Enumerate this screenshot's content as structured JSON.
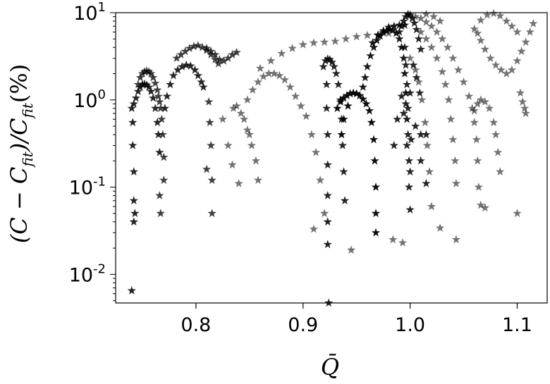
{
  "chart_data": {
    "type": "scatter",
    "title": "",
    "xlabel": "Q̄",
    "ylabel": "(C − C_fit)/C_fit(%)",
    "ylabel_parts": {
      "open": "(C − C",
      "sub1": "fit",
      "mid": ")/C",
      "sub2": "fit",
      "tail": "(%)"
    },
    "xlim": [
      0.725,
      1.128
    ],
    "ylim": [
      0.0047,
      10
    ],
    "yscale": "log",
    "grid": false,
    "marker": "star",
    "color": "#000000",
    "x_ticks": [
      {
        "value": 0.8,
        "label": "0.8"
      },
      {
        "value": 0.9,
        "label": "0.9"
      },
      {
        "value": 1.0,
        "label": "1.0"
      },
      {
        "value": 1.1,
        "label": "1.1"
      }
    ],
    "y_ticks": [
      {
        "value": 0.01,
        "base": "10",
        "exp": "-2"
      },
      {
        "value": 0.1,
        "base": "10",
        "exp": "-1"
      },
      {
        "value": 1,
        "base": "10",
        "exp": "0"
      },
      {
        "value": 10,
        "base": "10",
        "exp": "1"
      }
    ],
    "series": [
      {
        "opacity": 0.85,
        "points": [
          [
            0.74,
            0.8
          ],
          [
            0.742,
            0.9
          ],
          [
            0.744,
            1.05
          ],
          [
            0.746,
            1.25
          ],
          [
            0.748,
            1.4
          ],
          [
            0.75,
            1.5
          ],
          [
            0.752,
            1.52
          ],
          [
            0.754,
            1.48
          ],
          [
            0.756,
            1.4
          ],
          [
            0.758,
            1.25
          ],
          [
            0.76,
            1.05
          ],
          [
            0.762,
            0.8
          ],
          [
            0.764,
            0.55
          ],
          [
            0.765,
            0.4
          ],
          [
            0.766,
            0.25
          ],
          [
            0.741,
            0.55
          ],
          [
            0.741,
            0.3
          ],
          [
            0.742,
            0.15
          ],
          [
            0.742,
            0.07
          ],
          [
            0.743,
            0.05
          ],
          [
            0.742,
            0.04
          ],
          [
            0.74,
            0.0065
          ]
        ]
      },
      {
        "opacity": 0.75,
        "points": [
          [
            0.746,
            1.5
          ],
          [
            0.748,
            1.8
          ],
          [
            0.75,
            2.0
          ],
          [
            0.752,
            2.1
          ],
          [
            0.754,
            2.15
          ],
          [
            0.756,
            2.1
          ],
          [
            0.758,
            2.0
          ],
          [
            0.76,
            1.8
          ],
          [
            0.762,
            1.55
          ],
          [
            0.764,
            1.3
          ],
          [
            0.765,
            1.1
          ],
          [
            0.766,
            0.95
          ],
          [
            0.767,
            0.8
          ],
          [
            0.768,
            0.6
          ],
          [
            0.769,
            0.4
          ],
          [
            0.77,
            0.22
          ],
          [
            0.77,
            0.12
          ],
          [
            0.766,
            0.08
          ],
          [
            0.767,
            0.05
          ]
        ]
      },
      {
        "opacity": 0.85,
        "points": [
          [
            0.771,
            0.8
          ],
          [
            0.773,
            1.1
          ],
          [
            0.776,
            1.5
          ],
          [
            0.779,
            1.9
          ],
          [
            0.783,
            2.2
          ],
          [
            0.787,
            2.4
          ],
          [
            0.791,
            2.5
          ],
          [
            0.795,
            2.45
          ],
          [
            0.799,
            2.2
          ],
          [
            0.802,
            1.9
          ],
          [
            0.805,
            1.6
          ],
          [
            0.807,
            1.4
          ]
        ]
      },
      {
        "opacity": 0.75,
        "points": [
          [
            0.782,
            3.0
          ],
          [
            0.786,
            3.3
          ],
          [
            0.79,
            3.6
          ],
          [
            0.794,
            3.9
          ],
          [
            0.798,
            4.1
          ],
          [
            0.802,
            4.2
          ],
          [
            0.806,
            4.0
          ],
          [
            0.81,
            3.7
          ],
          [
            0.814,
            3.3
          ],
          [
            0.818,
            2.9
          ],
          [
            0.821,
            2.6
          ],
          [
            0.81,
            3.9
          ],
          [
            0.814,
            3.6
          ],
          [
            0.818,
            3.3
          ],
          [
            0.822,
            2.9
          ],
          [
            0.826,
            2.8
          ],
          [
            0.83,
            3.0
          ],
          [
            0.834,
            3.3
          ],
          [
            0.838,
            3.5
          ],
          [
            0.812,
            0.95
          ],
          [
            0.813,
            0.55
          ],
          [
            0.814,
            0.3
          ],
          [
            0.815,
            0.12
          ],
          [
            0.815,
            0.05
          ],
          [
            0.81,
            0.16
          ]
        ]
      },
      {
        "opacity": 0.55,
        "points": [
          [
            0.835,
            0.8
          ],
          [
            0.838,
            0.85
          ],
          [
            0.842,
            0.7
          ],
          [
            0.848,
            0.45
          ],
          [
            0.852,
            0.3
          ],
          [
            0.856,
            0.2
          ],
          [
            0.858,
            0.12
          ],
          [
            0.845,
            0.6
          ],
          [
            0.85,
            0.4
          ],
          [
            0.848,
            1.0
          ],
          [
            0.853,
            1.3
          ],
          [
            0.858,
            1.6
          ],
          [
            0.863,
            1.85
          ],
          [
            0.868,
            2.0
          ],
          [
            0.873,
            2.0
          ],
          [
            0.878,
            1.9
          ],
          [
            0.883,
            1.7
          ],
          [
            0.888,
            1.4
          ],
          [
            0.893,
            1.1
          ],
          [
            0.898,
            0.85
          ],
          [
            0.903,
            0.65
          ],
          [
            0.908,
            0.4
          ],
          [
            0.912,
            0.25
          ],
          [
            0.916,
            0.12
          ],
          [
            0.92,
            0.05
          ],
          [
            0.91,
            0.033
          ],
          [
            0.86,
            2.3
          ],
          [
            0.87,
            2.8
          ],
          [
            0.88,
            3.4
          ],
          [
            0.89,
            3.9
          ],
          [
            0.9,
            4.3
          ],
          [
            0.91,
            4.5
          ],
          [
            0.92,
            4.6
          ],
          [
            0.93,
            4.7
          ],
          [
            0.94,
            5.0
          ],
          [
            0.95,
            5.3
          ],
          [
            0.96,
            5.5
          ],
          [
            0.97,
            5.6
          ],
          [
            0.98,
            5.8
          ],
          [
            0.83,
            0.3
          ],
          [
            0.834,
            0.18
          ],
          [
            0.84,
            0.11
          ],
          [
            0.825,
            0.6
          ]
        ]
      },
      {
        "opacity": 0.85,
        "points": [
          [
            0.919,
            2.4
          ],
          [
            0.921,
            2.8
          ],
          [
            0.923,
            2.95
          ],
          [
            0.925,
            2.9
          ],
          [
            0.927,
            2.7
          ],
          [
            0.929,
            2.4
          ],
          [
            0.931,
            2.0
          ],
          [
            0.933,
            1.5
          ],
          [
            0.935,
            1.0
          ],
          [
            0.936,
            0.6
          ],
          [
            0.937,
            0.3
          ],
          [
            0.938,
            0.15
          ],
          [
            0.939,
            0.07
          ],
          [
            0.922,
            1.5
          ],
          [
            0.922,
            0.8
          ],
          [
            0.923,
            0.4
          ],
          [
            0.923,
            0.18
          ],
          [
            0.923,
            0.08
          ],
          [
            0.923,
            0.04
          ],
          [
            0.923,
            0.022
          ],
          [
            0.924,
            0.0047
          ]
        ]
      },
      {
        "opacity": 0.95,
        "points": [
          [
            0.932,
            0.8
          ],
          [
            0.935,
            0.95
          ],
          [
            0.938,
            1.05
          ],
          [
            0.941,
            1.12
          ],
          [
            0.944,
            1.18
          ],
          [
            0.947,
            1.2
          ],
          [
            0.95,
            1.18
          ],
          [
            0.953,
            1.12
          ],
          [
            0.956,
            1.02
          ],
          [
            0.959,
            0.9
          ],
          [
            0.962,
            0.75
          ],
          [
            0.964,
            0.55
          ],
          [
            0.966,
            0.35
          ],
          [
            0.967,
            0.2
          ],
          [
            0.968,
            0.1
          ],
          [
            0.968,
            0.05
          ],
          [
            0.968,
            0.03
          ],
          [
            0.938,
            0.6
          ],
          [
            0.942,
            0.85
          ],
          [
            0.936,
            0.4
          ]
        ]
      },
      {
        "opacity": 0.9,
        "points": [
          [
            0.956,
            1.4
          ],
          [
            0.958,
            1.8
          ],
          [
            0.96,
            2.4
          ],
          [
            0.963,
            3.2
          ],
          [
            0.966,
            4.0
          ],
          [
            0.969,
            4.8
          ],
          [
            0.972,
            5.4
          ],
          [
            0.975,
            5.9
          ],
          [
            0.978,
            6.2
          ],
          [
            0.981,
            6.4
          ],
          [
            0.984,
            6.3
          ],
          [
            0.987,
            5.8
          ],
          [
            0.99,
            5.0
          ],
          [
            0.992,
            4.0
          ],
          [
            0.994,
            3.0
          ],
          [
            0.995,
            2.0
          ],
          [
            0.996,
            1.2
          ],
          [
            0.997,
            0.6
          ],
          [
            0.965,
            4.5
          ],
          [
            0.97,
            5.5
          ],
          [
            0.975,
            6.2
          ],
          [
            0.98,
            6.8
          ],
          [
            0.985,
            7.0
          ],
          [
            0.99,
            7.2
          ],
          [
            0.995,
            7.2
          ]
        ]
      },
      {
        "opacity": 0.85,
        "points": [
          [
            0.99,
            6.0
          ],
          [
            0.992,
            7.0
          ],
          [
            0.994,
            8.0
          ],
          [
            0.996,
            9.0
          ],
          [
            0.998,
            9.6
          ],
          [
            1.0,
            9.4
          ],
          [
            1.002,
            8.6
          ],
          [
            1.004,
            7.6
          ],
          [
            1.006,
            6.4
          ],
          [
            1.008,
            5.0
          ],
          [
            1.01,
            3.8
          ],
          [
            0.995,
            4.0
          ],
          [
            0.996,
            2.5
          ],
          [
            0.997,
            1.5
          ],
          [
            0.998,
            0.8
          ],
          [
            0.998,
            0.4
          ],
          [
            0.999,
            0.2
          ],
          [
            0.999,
            0.1
          ],
          [
            1.0,
            0.055
          ],
          [
            0.997,
            0.3
          ],
          [
            1.001,
            0.35
          ],
          [
            0.996,
            0.9
          ],
          [
            1.0,
            1.2
          ],
          [
            1.003,
            2.5
          ],
          [
            1.006,
            1.8
          ],
          [
            1.009,
            1.2
          ],
          [
            0.994,
            0.7
          ],
          [
            0.992,
            1.1
          ],
          [
            0.988,
            0.6
          ],
          [
            0.985,
            0.3
          ],
          [
            1.005,
            0.5
          ],
          [
            1.01,
            0.4
          ],
          [
            1.015,
            0.4
          ],
          [
            1.01,
            0.2
          ],
          [
            1.015,
            0.11
          ],
          [
            1.0,
            0.15
          ]
        ]
      },
      {
        "opacity": 0.55,
        "points": [
          [
            1.005,
            9.0
          ],
          [
            1.01,
            8.6
          ],
          [
            1.015,
            7.8
          ],
          [
            1.02,
            7.0
          ],
          [
            1.025,
            6.0
          ],
          [
            1.03,
            5.0
          ],
          [
            1.035,
            4.0
          ],
          [
            1.04,
            3.0
          ],
          [
            1.045,
            2.2
          ],
          [
            1.05,
            1.6
          ],
          [
            1.055,
            1.1
          ],
          [
            1.058,
            0.8
          ],
          [
            1.06,
            0.55
          ],
          [
            1.062,
            0.35
          ],
          [
            1.063,
            0.2
          ],
          [
            1.064,
            0.1
          ],
          [
            1.066,
            0.062
          ],
          [
            1.07,
            0.058
          ],
          [
            1.01,
            6.0
          ],
          [
            1.015,
            5.0
          ],
          [
            1.02,
            4.0
          ],
          [
            1.025,
            3.0
          ],
          [
            1.03,
            2.1
          ],
          [
            1.033,
            1.5
          ],
          [
            1.036,
            1.0
          ],
          [
            1.038,
            0.6
          ],
          [
            1.04,
            0.35
          ],
          [
            1.042,
            0.2
          ],
          [
            1.043,
            0.11
          ],
          [
            1.0,
            3.0
          ],
          [
            1.005,
            2.2
          ],
          [
            1.008,
            1.6
          ],
          [
            1.011,
            1.0
          ],
          [
            1.014,
            0.55
          ],
          [
            1.016,
            0.3
          ],
          [
            1.018,
            0.15
          ],
          [
            1.02,
            0.06
          ],
          [
            1.015,
            9.6
          ],
          [
            1.022,
            9.0
          ],
          [
            1.028,
            8.0
          ],
          [
            1.06,
            0.75
          ],
          [
            1.063,
            0.9
          ],
          [
            1.066,
            1.0
          ],
          [
            1.07,
            0.95
          ],
          [
            1.074,
            0.8
          ],
          [
            1.078,
            0.55
          ],
          [
            1.08,
            0.4
          ],
          [
            1.082,
            0.25
          ],
          [
            1.084,
            0.15
          ],
          [
            1.06,
            6.5
          ],
          [
            1.063,
            5.8
          ],
          [
            1.066,
            4.8
          ],
          [
            1.07,
            3.8
          ],
          [
            1.075,
            3.0
          ],
          [
            1.08,
            2.5
          ],
          [
            1.085,
            2.2
          ],
          [
            1.09,
            2.0
          ],
          [
            1.095,
            2.2
          ],
          [
            1.1,
            2.8
          ],
          [
            1.104,
            3.6
          ],
          [
            1.108,
            4.6
          ],
          [
            1.112,
            6.0
          ],
          [
            1.115,
            7.5
          ],
          [
            1.066,
            8.2
          ],
          [
            1.072,
            9.4
          ],
          [
            1.078,
            9.8
          ],
          [
            1.084,
            9.2
          ],
          [
            1.09,
            8.0
          ],
          [
            1.095,
            7.0
          ],
          [
            1.1,
            6.0
          ],
          [
            1.103,
            1.2
          ],
          [
            1.105,
            0.95
          ],
          [
            1.107,
            0.8
          ],
          [
            1.108,
            0.7
          ],
          [
            1.1,
            0.05
          ],
          [
            1.043,
            0.025
          ],
          [
            1.028,
            0.034
          ],
          [
            0.993,
            0.023
          ],
          [
            0.984,
            0.025
          ],
          [
            0.945,
            0.019
          ]
        ]
      }
    ]
  }
}
